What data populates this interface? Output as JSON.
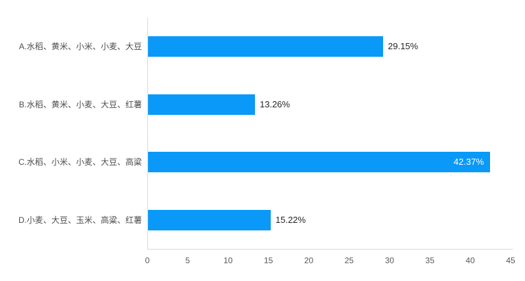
{
  "chart_data": {
    "type": "bar",
    "orientation": "horizontal",
    "title": "",
    "xlabel": "",
    "ylabel": "",
    "categories": [
      "A.水稻、黄米、小米、小麦、大豆",
      "B.水稻、黄米、小麦、大豆、红薯",
      "C.水稻、小米、小麦、大豆、高粱",
      "D.小麦、大豆、玉米、高粱、红薯"
    ],
    "values": [
      29.15,
      13.26,
      42.37,
      15.22
    ],
    "value_labels": [
      "29.15%",
      "13.26%",
      "42.37%",
      "15.22%"
    ],
    "xlim": [
      0,
      45
    ],
    "x_ticks": [
      0,
      5,
      10,
      15,
      20,
      25,
      30,
      35,
      40,
      45
    ],
    "grid": false,
    "legend": "none",
    "colors": {
      "bar": "#0a99f8",
      "axis_line": "#d9d9d9",
      "category_label": "#4d4d4d",
      "tick_label": "#595959",
      "value_label_outside": "#262626",
      "value_label_inside": "#ffffff"
    }
  }
}
